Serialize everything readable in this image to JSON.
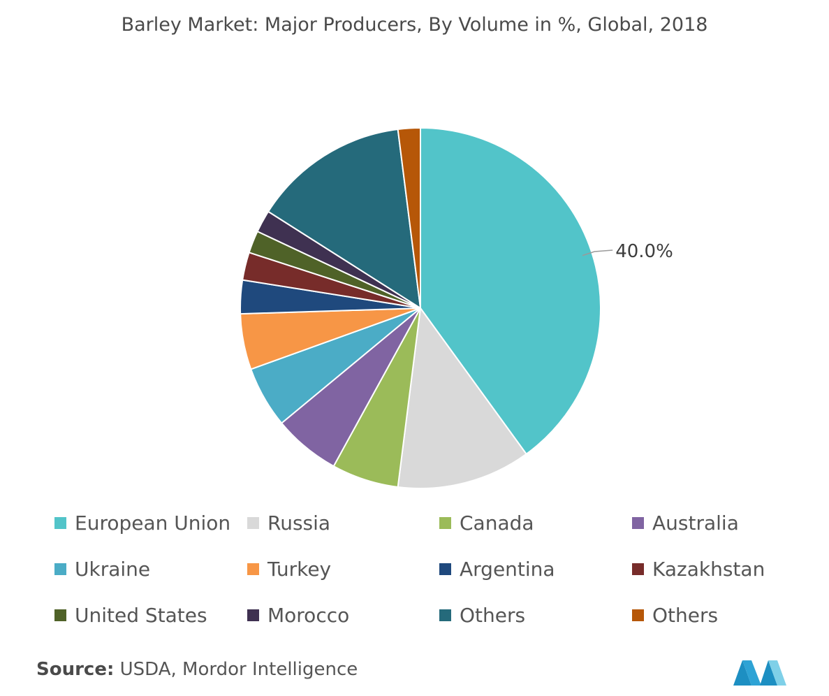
{
  "title": "Barley Market: Major Producers, By Volume in %, Global, 2018",
  "source": {
    "label": "Source:",
    "text": " USDA, Mordor Intelligence"
  },
  "chart_data": {
    "type": "pie",
    "title": "Barley Market: Major Producers, By Volume in %, Global, 2018",
    "start_angle_deg": 0,
    "direction": "clockwise",
    "legend_placement": "bottom",
    "slices": [
      {
        "label": "European Union",
        "value": 40.0,
        "color": "#52c4c9",
        "data_label": "40.0%"
      },
      {
        "label": "Russia",
        "value": 12.0,
        "color": "#d9d9d9"
      },
      {
        "label": "Canada",
        "value": 6.0,
        "color": "#9bbb59"
      },
      {
        "label": "Australia",
        "value": 6.0,
        "color": "#8064a2"
      },
      {
        "label": "Ukraine",
        "value": 5.5,
        "color": "#4bacc6"
      },
      {
        "label": "Turkey",
        "value": 5.0,
        "color": "#f79646"
      },
      {
        "label": "Argentina",
        "value": 3.0,
        "color": "#1f497d"
      },
      {
        "label": "Kazakhstan",
        "value": 2.5,
        "color": "#772c2a"
      },
      {
        "label": "United States",
        "value": 2.0,
        "color": "#4f6228"
      },
      {
        "label": "Morocco",
        "value": 2.0,
        "color": "#3f3151"
      },
      {
        "label": "Others",
        "value": 14.0,
        "color": "#256a7b"
      },
      {
        "label": "Others",
        "value": 2.0,
        "color": "#b65708"
      }
    ]
  }
}
